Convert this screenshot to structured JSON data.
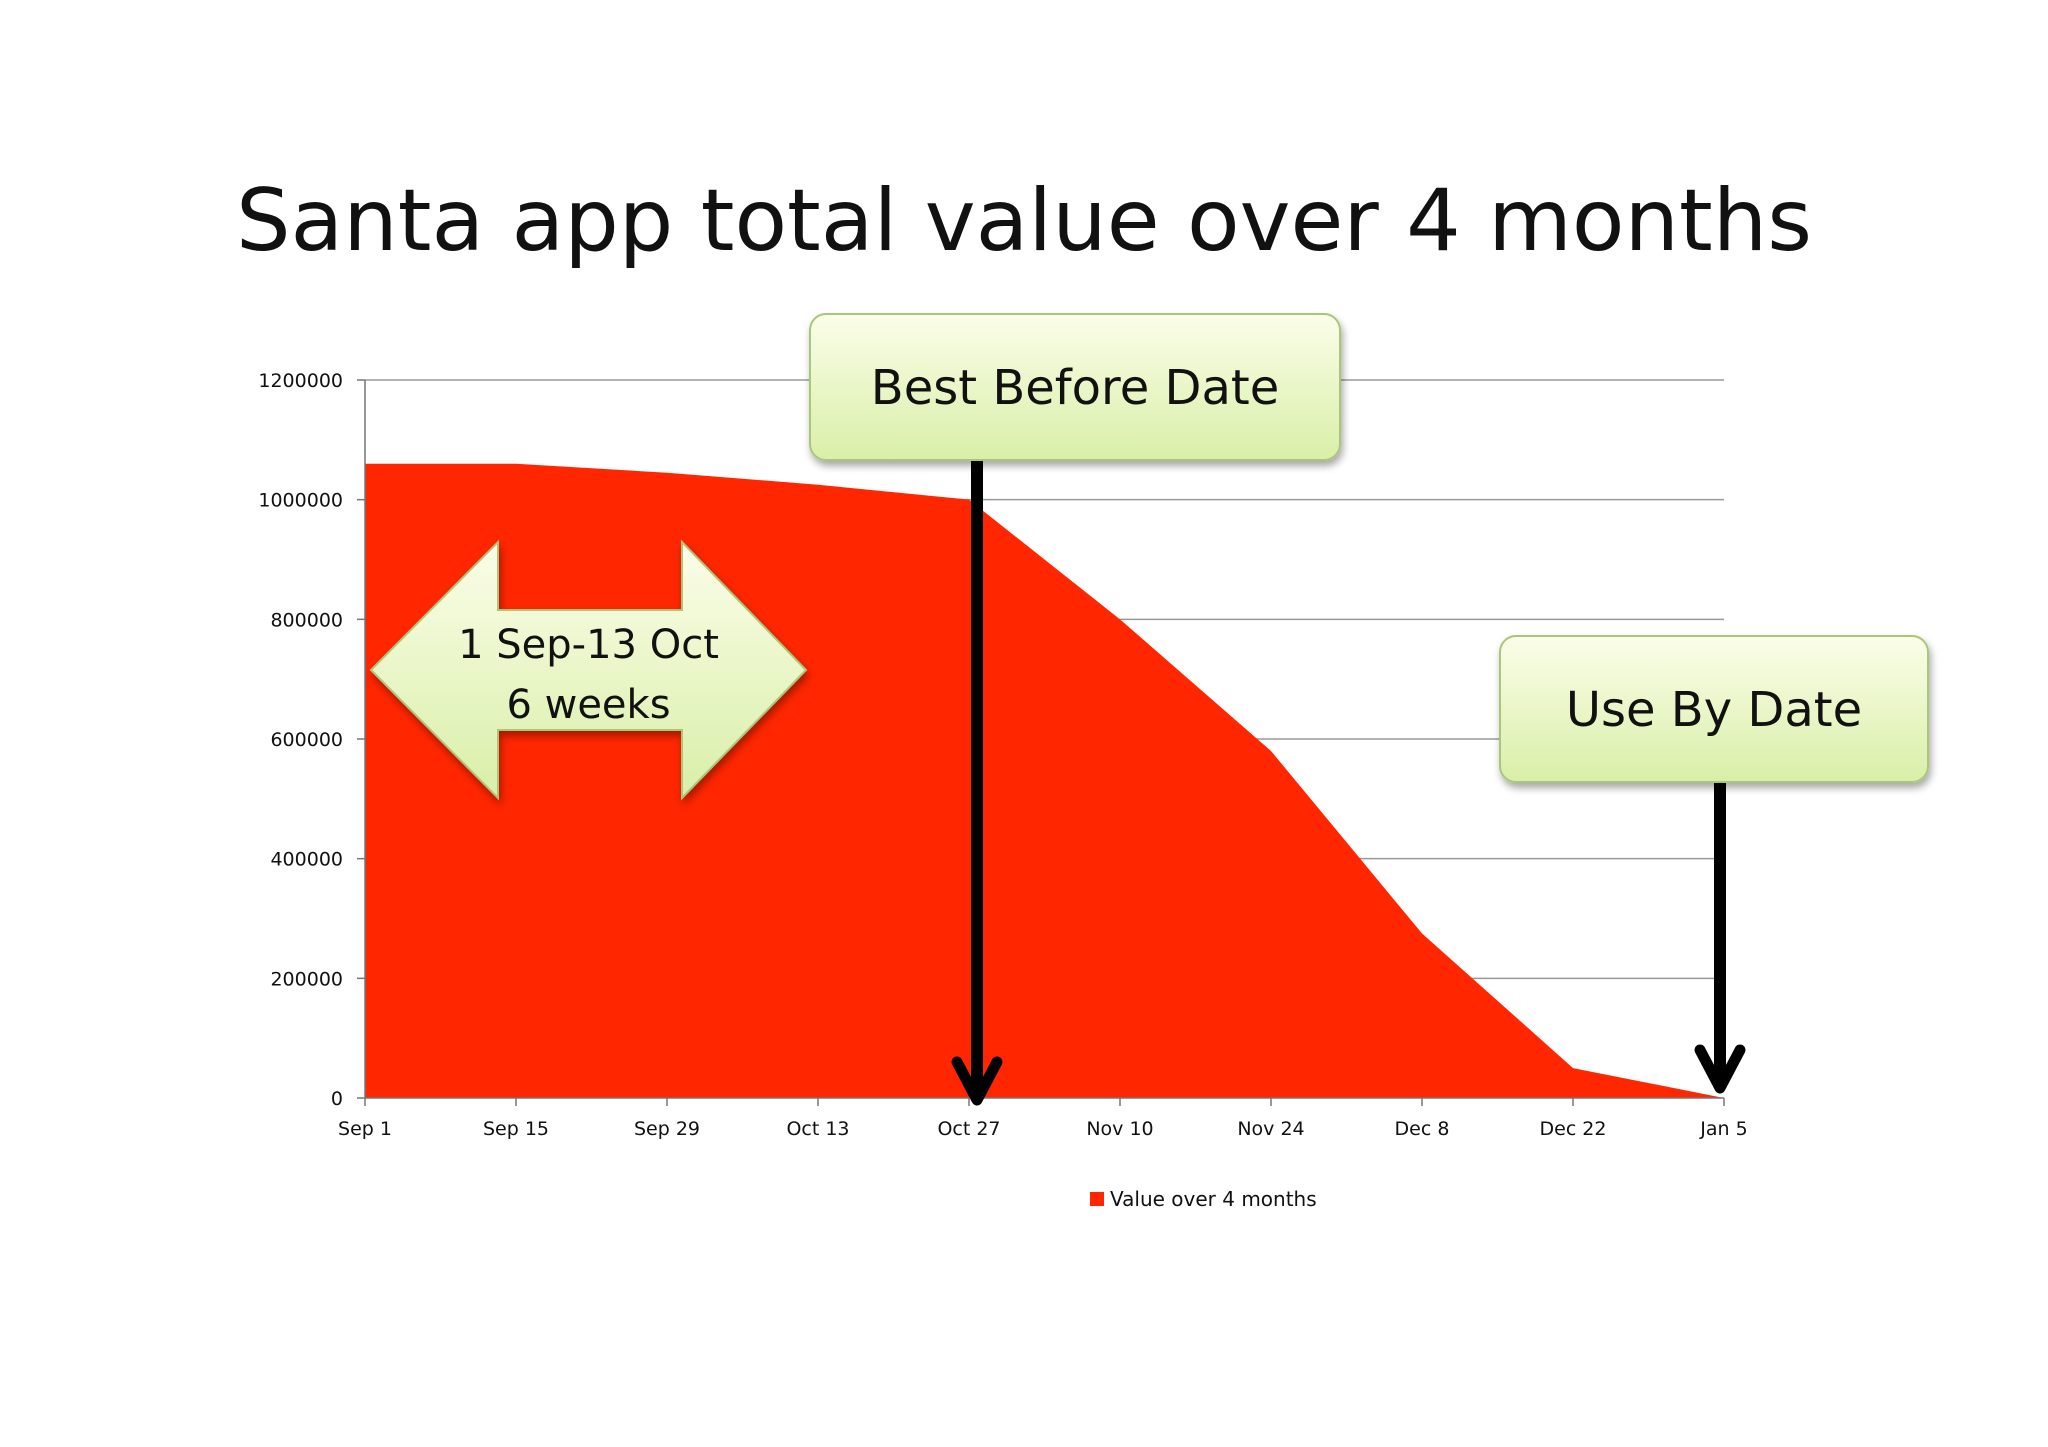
{
  "chart_data": {
    "type": "area",
    "title": "Santa app total value over 4 months",
    "categories": [
      "Sep 1",
      "Sep 15",
      "Sep 29",
      "Oct 13",
      "Oct 27",
      "Nov 10",
      "Nov 24",
      "Dec 8",
      "Dec 22",
      "Jan 5"
    ],
    "series": [
      {
        "name": "Value over 4 months",
        "color": "#ff2600",
        "values": [
          1060000,
          1060000,
          1045000,
          1025000,
          1000000,
          800000,
          580000,
          275000,
          50000,
          0
        ]
      }
    ],
    "ylim": [
      0,
      1200000
    ],
    "yticks": [
      "0",
      "200000",
      "400000",
      "600000",
      "800000",
      "1000000",
      "1200000"
    ],
    "xlabel": "",
    "ylabel": "",
    "grid": true,
    "legend": "bottom",
    "annotations": {
      "best_before": {
        "label": "Best Before Date",
        "x_category": "Oct 27"
      },
      "use_by": {
        "label": "Use By Date",
        "x_category": "Jan 5"
      },
      "period": {
        "line1": "1 Sep-13 Oct",
        "line2": "6 weeks",
        "from_category": "Sep 1",
        "to_category": "Oct 13"
      }
    }
  },
  "colors": {
    "callout_fill_top": "#fbfde9",
    "callout_fill_bottom": "#d9efa8",
    "callout_border": "#a9c77a",
    "arrow": "#000000",
    "grid": "#999999"
  }
}
